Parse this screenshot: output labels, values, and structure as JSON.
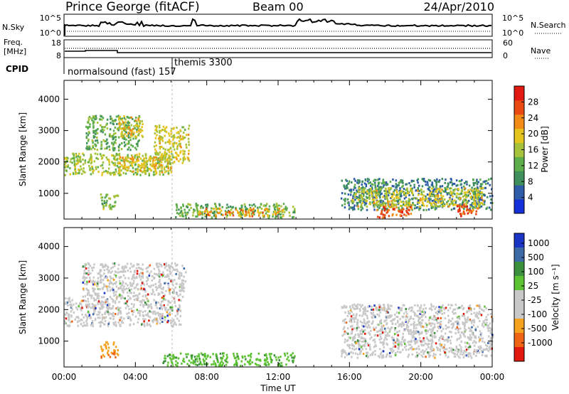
{
  "header": {
    "station": "Prince George (fitACF)",
    "beam": "Beam 00",
    "date": "24/Apr/2010"
  },
  "sky_panel": {
    "left_label": "N.Sky",
    "right_label": "N.Search",
    "left_ticks": [
      "10^5",
      "10^0"
    ],
    "right_ticks": [
      "10^5",
      "10^0"
    ]
  },
  "freq_panel": {
    "left_label_1": "Freq.",
    "left_label_2": "[MHz]",
    "right_label": "Nave",
    "left_ticks": [
      "18",
      "8"
    ],
    "right_ticks": [
      "60",
      "0"
    ]
  },
  "cpid": {
    "label": "CPID",
    "mode_1": "normalsound (fast) 157",
    "mode_2": "themis 3300"
  },
  "colors": {
    "power": [
      "#1530d8",
      "#2f5ca8",
      "#3f8f5c",
      "#5fae4c",
      "#a6c23a",
      "#e5c41e",
      "#f28a16",
      "#e84a12",
      "#e01a10"
    ],
    "velocity": [
      "#1a35c4",
      "#3b6aa6",
      "#3c8f3c",
      "#5cc232",
      "#c8c8c8",
      "#c8c8c8",
      "#f5a21e",
      "#ee6414",
      "#e0190f"
    ]
  },
  "chart_data": [
    {
      "type": "heatmap",
      "title": "Power",
      "ylabel": "Slant Range [km]",
      "ylim": [
        180,
        4600
      ],
      "yticks": [
        "1000",
        "2000",
        "3000",
        "4000"
      ],
      "xlim": [
        "00:00",
        "24:00"
      ],
      "colorbar": {
        "label": "Power [dB]",
        "ticks": [
          "4",
          "8",
          "12",
          "16",
          "20",
          "24",
          "28"
        ],
        "range": [
          0,
          32
        ]
      },
      "regions": [
        {
          "t0": 0.0,
          "t1": 6.0,
          "r0": 1600,
          "r1": 2300,
          "level": 16
        },
        {
          "t0": 3.0,
          "t1": 6.0,
          "r0": 1700,
          "r1": 2200,
          "level": 20
        },
        {
          "t0": 1.2,
          "t1": 4.2,
          "r0": 2400,
          "r1": 3500,
          "level": 12
        },
        {
          "t0": 3.0,
          "t1": 4.4,
          "r0": 2800,
          "r1": 3500,
          "level": 20
        },
        {
          "t0": 5.0,
          "t1": 7.0,
          "r0": 2000,
          "r1": 3200,
          "level": 18
        },
        {
          "t0": 2.0,
          "t1": 3.0,
          "r0": 500,
          "r1": 1000,
          "level": 14
        },
        {
          "t0": 6.2,
          "t1": 12.9,
          "r0": 250,
          "r1": 700,
          "level": 12
        },
        {
          "t0": 7.5,
          "t1": 12.5,
          "r0": 300,
          "r1": 550,
          "level": 22
        },
        {
          "t0": 15.5,
          "t1": 24.0,
          "r0": 500,
          "r1": 1500,
          "level": 8
        },
        {
          "t0": 16.0,
          "t1": 23.5,
          "r0": 600,
          "r1": 1200,
          "level": 18
        },
        {
          "t0": 17.5,
          "t1": 19.5,
          "r0": 250,
          "r1": 600,
          "level": 26
        },
        {
          "t0": 22.0,
          "t1": 23.2,
          "r0": 300,
          "r1": 650,
          "level": 26
        }
      ]
    },
    {
      "type": "heatmap",
      "title": "Velocity",
      "ylabel": "Slant Range [km]",
      "xlabel": "Time UT",
      "ylim": [
        180,
        4600
      ],
      "yticks": [
        "1000",
        "2000",
        "3000",
        "4000"
      ],
      "xlim": [
        "00:00",
        "24:00"
      ],
      "xticks": [
        "00:00",
        "04:00",
        "08:00",
        "12:00",
        "16:00",
        "20:00",
        "00:00"
      ],
      "colorbar": {
        "label": "Velocity [m s⁻¹]",
        "ticks": [
          "1000",
          "500",
          "100",
          "25",
          "-25",
          "-100",
          "-500",
          "-1000"
        ],
        "range": [
          -1250,
          1250
        ]
      },
      "regions": [
        {
          "t0": 0.0,
          "t1": 6.5,
          "r0": 1500,
          "r1": 2400,
          "v": 0
        },
        {
          "t0": 1.0,
          "t1": 6.8,
          "r0": 2400,
          "r1": 3500,
          "v": 0
        },
        {
          "t0": 2.0,
          "t1": 3.0,
          "r0": 500,
          "r1": 1000,
          "v": -300
        },
        {
          "t0": 5.5,
          "t1": 12.9,
          "r0": 250,
          "r1": 650,
          "v": 110
        },
        {
          "t0": 15.5,
          "t1": 24.0,
          "r0": 500,
          "r1": 2200,
          "v": 0
        }
      ]
    }
  ]
}
